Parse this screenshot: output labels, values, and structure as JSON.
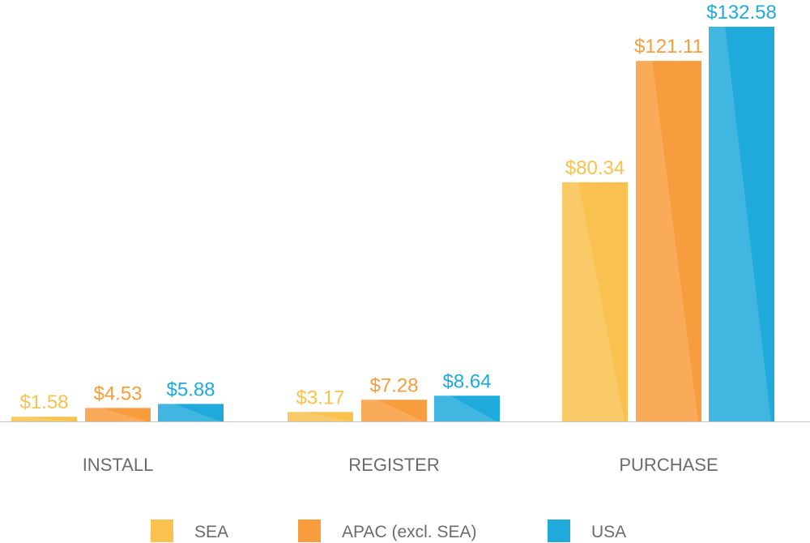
{
  "chart_data": {
    "type": "bar",
    "categories": [
      "INSTALL",
      "REGISTER",
      "PURCHASE"
    ],
    "series": [
      {
        "name": "SEA",
        "values": [
          1.58,
          3.17,
          80.34
        ],
        "labels": [
          "$1.58",
          "$3.17",
          "$80.34"
        ],
        "color": "#F9C14F"
      },
      {
        "name": "APAC (excl. SEA)",
        "values": [
          4.53,
          7.28,
          121.11
        ],
        "labels": [
          "$4.53",
          "$7.28",
          "$121.11"
        ],
        "color": "#F89D3D"
      },
      {
        "name": "USA",
        "values": [
          5.88,
          8.64,
          132.58
        ],
        "labels": [
          "$5.88",
          "$8.64",
          "$132.58"
        ],
        "color": "#20AADC"
      }
    ],
    "ylim": [
      0,
      132.58
    ],
    "grid": false,
    "legend": "bottom"
  }
}
